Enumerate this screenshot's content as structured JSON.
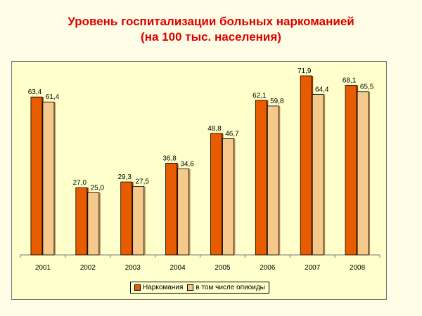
{
  "title_lines": [
    "Уровень госпитализации больных наркоманией",
    "(на 100 тыс. населения)"
  ],
  "colors": {
    "title": "#dd0000",
    "series1": "#e85c00",
    "series2": "#f5c98c",
    "plot_bg": "#ffffcc",
    "slide_bg": "#fffde6"
  },
  "chart_data": {
    "type": "bar",
    "categories": [
      "2001",
      "2002",
      "2003",
      "2004",
      "2005",
      "2006",
      "2007",
      "2008"
    ],
    "series": [
      {
        "name": "Наркомания",
        "values": [
          63.4,
          27.0,
          29.3,
          36.8,
          48.8,
          62.1,
          71.9,
          68.1
        ],
        "labels": [
          "63,4",
          "27,0",
          "29,3",
          "36,8",
          "48,8",
          "62,1",
          "71,9",
          "68,1"
        ]
      },
      {
        "name": "в том числе опиоиды",
        "values": [
          61.4,
          25.0,
          27.5,
          34.6,
          46.7,
          59.8,
          64.4,
          65.5
        ],
        "labels": [
          "61,4",
          "25,0",
          "27,5",
          "34,6",
          "46,7",
          "59,8",
          "64,4",
          "65,5"
        ]
      }
    ],
    "ylim": [
      0,
      75
    ],
    "grid": false,
    "legend": "bottom"
  }
}
